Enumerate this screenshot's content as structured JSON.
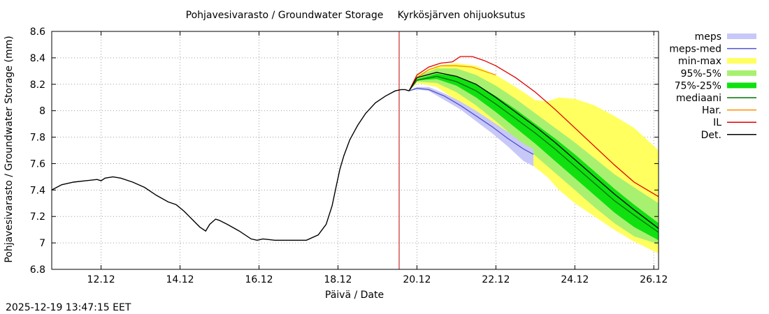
{
  "chart_data": {
    "type": "line",
    "title": "Pohjavesivarasto / Groundwater Storage",
    "subtitle": "Kyrkösjärven ohijuoksutus",
    "xlabel": "Päivä / Date",
    "ylabel": "Pohjavesivarasto / Groundwater Storage (mm)",
    "xlim": [
      10.75,
      26.12
    ],
    "ylim": [
      6.8,
      8.6
    ],
    "x_ticks": [
      {
        "x": 12,
        "label": "12.12"
      },
      {
        "x": 14,
        "label": "14.12"
      },
      {
        "x": 16,
        "label": "16.12"
      },
      {
        "x": 18,
        "label": "18.12"
      },
      {
        "x": 20,
        "label": "20.12"
      },
      {
        "x": 22,
        "label": "22.12"
      },
      {
        "x": 24,
        "label": "24.12"
      },
      {
        "x": 26,
        "label": "26.12"
      }
    ],
    "y_ticks": [
      {
        "y": 6.8,
        "label": "6.8"
      },
      {
        "y": 7.0,
        "label": "7"
      },
      {
        "y": 7.2,
        "label": "7.2"
      },
      {
        "y": 7.4,
        "label": "7.4"
      },
      {
        "y": 7.6,
        "label": "7.6"
      },
      {
        "y": 7.8,
        "label": "7.8"
      },
      {
        "y": 8.0,
        "label": "8"
      },
      {
        "y": 8.2,
        "label": "8.2"
      },
      {
        "y": 8.4,
        "label": "8.4"
      },
      {
        "y": 8.6,
        "label": "8.6"
      }
    ],
    "now_x": 19.55,
    "colors": {
      "meps": "#c8c8f8",
      "meps_med": "#5050d0",
      "min_max": "#ffff60",
      "p95_5": "#a8f070",
      "p75_25": "#10e010",
      "median": "#007000",
      "har": "#ff8c00",
      "il": "#e00000",
      "det": "#000000",
      "now_line": "#c00000"
    },
    "legend": [
      {
        "key": "meps",
        "label": "meps",
        "kind": "band"
      },
      {
        "key": "meps_med",
        "label": "meps-med",
        "kind": "line"
      },
      {
        "key": "min_max",
        "label": "min-max",
        "kind": "band"
      },
      {
        "key": "p95_5",
        "label": "95%-5%",
        "kind": "band"
      },
      {
        "key": "p75_25",
        "label": "75%-25%",
        "kind": "band"
      },
      {
        "key": "median",
        "label": "mediaani",
        "kind": "line"
      },
      {
        "key": "har",
        "label": "Har.",
        "kind": "line"
      },
      {
        "key": "il",
        "label": "IL",
        "kind": "line"
      },
      {
        "key": "det",
        "label": "Det.",
        "kind": "line"
      }
    ],
    "series": {
      "observed": {
        "x": [
          10.75,
          11.0,
          11.3,
          11.6,
          11.9,
          12.0,
          12.1,
          12.3,
          12.5,
          12.8,
          13.1,
          13.4,
          13.7,
          13.9,
          14.1,
          14.3,
          14.5,
          14.65,
          14.75,
          14.9,
          15.0,
          15.2,
          15.5,
          15.8,
          15.95,
          16.1,
          16.4,
          16.8,
          17.2,
          17.5,
          17.7,
          17.85,
          17.95,
          18.05,
          18.15,
          18.3,
          18.5,
          18.7,
          18.95,
          19.2,
          19.45,
          19.6,
          19.7,
          19.8
        ],
        "y": [
          7.4,
          7.44,
          7.46,
          7.47,
          7.48,
          7.47,
          7.49,
          7.5,
          7.49,
          7.46,
          7.42,
          7.36,
          7.31,
          7.29,
          7.24,
          7.18,
          7.12,
          7.09,
          7.14,
          7.18,
          7.17,
          7.14,
          7.09,
          7.03,
          7.02,
          7.03,
          7.02,
          7.02,
          7.02,
          7.06,
          7.14,
          7.28,
          7.42,
          7.56,
          7.66,
          7.78,
          7.89,
          7.98,
          8.06,
          8.11,
          8.15,
          8.16,
          8.16,
          8.15
        ]
      },
      "min_max": {
        "x": [
          19.8,
          20.0,
          20.5,
          21.0,
          21.5,
          22.0,
          22.5,
          23.0,
          23.3,
          23.6,
          24.0,
          24.5,
          25.0,
          25.5,
          26.12
        ],
        "upper": [
          8.15,
          8.27,
          8.34,
          8.36,
          8.34,
          8.27,
          8.18,
          8.08,
          8.07,
          8.1,
          8.09,
          8.04,
          7.96,
          7.87,
          7.7
        ],
        "lower": [
          8.15,
          8.21,
          8.18,
          8.08,
          7.96,
          7.83,
          7.7,
          7.57,
          7.5,
          7.4,
          7.3,
          7.2,
          7.1,
          7.01,
          6.92
        ]
      },
      "p95_5": {
        "x": [
          19.8,
          20.0,
          20.5,
          21.0,
          21.5,
          22.0,
          22.5,
          23.0,
          23.5,
          24.0,
          24.5,
          25.0,
          25.5,
          26.12
        ],
        "upper": [
          8.15,
          8.26,
          8.32,
          8.32,
          8.27,
          8.19,
          8.09,
          7.98,
          7.87,
          7.76,
          7.64,
          7.52,
          7.42,
          7.3
        ],
        "lower": [
          8.15,
          8.22,
          8.21,
          8.14,
          8.04,
          7.92,
          7.79,
          7.66,
          7.53,
          7.4,
          7.27,
          7.15,
          7.05,
          6.99
        ]
      },
      "p75_25": {
        "x": [
          19.8,
          20.0,
          20.5,
          21.0,
          21.5,
          22.0,
          22.5,
          23.0,
          23.5,
          24.0,
          24.5,
          25.0,
          25.5,
          26.12
        ],
        "upper": [
          8.15,
          8.24,
          8.28,
          8.26,
          8.2,
          8.11,
          8.01,
          7.9,
          7.79,
          7.67,
          7.54,
          7.41,
          7.29,
          7.15
        ],
        "lower": [
          8.15,
          8.23,
          8.24,
          8.19,
          8.1,
          7.99,
          7.87,
          7.75,
          7.62,
          7.49,
          7.36,
          7.23,
          7.12,
          7.02
        ]
      },
      "meps": {
        "x": [
          19.8,
          20.0,
          20.3,
          20.7,
          21.1,
          21.5,
          21.9,
          22.3,
          22.7,
          22.95
        ],
        "upper": [
          8.15,
          8.18,
          8.18,
          8.13,
          8.07,
          8.0,
          7.92,
          7.84,
          7.75,
          7.71
        ],
        "lower": [
          8.15,
          8.16,
          8.15,
          8.08,
          8.01,
          7.92,
          7.83,
          7.73,
          7.62,
          7.58
        ]
      },
      "meps_med": {
        "x": [
          19.8,
          20.0,
          20.3,
          20.7,
          21.1,
          21.5,
          21.9,
          22.3,
          22.7,
          22.95
        ],
        "y": [
          8.15,
          8.17,
          8.16,
          8.11,
          8.04,
          7.96,
          7.88,
          7.79,
          7.71,
          7.67
        ]
      },
      "median": {
        "x": [
          19.8,
          20.0,
          20.5,
          21.0,
          21.5,
          22.0,
          22.5,
          23.0,
          23.5,
          24.0,
          24.5,
          25.0,
          25.5,
          26.12
        ],
        "y": [
          8.15,
          8.23,
          8.26,
          8.22,
          8.15,
          8.05,
          7.94,
          7.83,
          7.71,
          7.58,
          7.45,
          7.32,
          7.21,
          7.08
        ]
      },
      "det": {
        "x": [
          19.8,
          20.0,
          20.5,
          21.0,
          21.5,
          22.0,
          22.5,
          23.0,
          23.5,
          24.0,
          24.5,
          25.0,
          25.5,
          26.12
        ],
        "y": [
          8.15,
          8.25,
          8.29,
          8.26,
          8.2,
          8.1,
          7.99,
          7.88,
          7.76,
          7.63,
          7.5,
          7.37,
          7.25,
          7.11
        ]
      },
      "har": {
        "x": [
          19.8,
          20.0,
          20.3,
          20.6,
          21.0,
          21.4,
          21.8,
          22.0
        ],
        "y": [
          8.15,
          8.25,
          8.31,
          8.34,
          8.34,
          8.33,
          8.29,
          8.27
        ]
      },
      "il": {
        "x": [
          19.8,
          20.0,
          20.3,
          20.6,
          20.9,
          21.1,
          21.4,
          21.7,
          22.0,
          22.5,
          23.0,
          23.5,
          24.0,
          24.5,
          25.0,
          25.5,
          26.12
        ],
        "y": [
          8.15,
          8.27,
          8.33,
          8.36,
          8.37,
          8.41,
          8.41,
          8.38,
          8.34,
          8.25,
          8.14,
          8.01,
          7.87,
          7.73,
          7.59,
          7.46,
          7.35
        ]
      }
    }
  },
  "timestamp": "2025-12-19 13:47:15 EET"
}
